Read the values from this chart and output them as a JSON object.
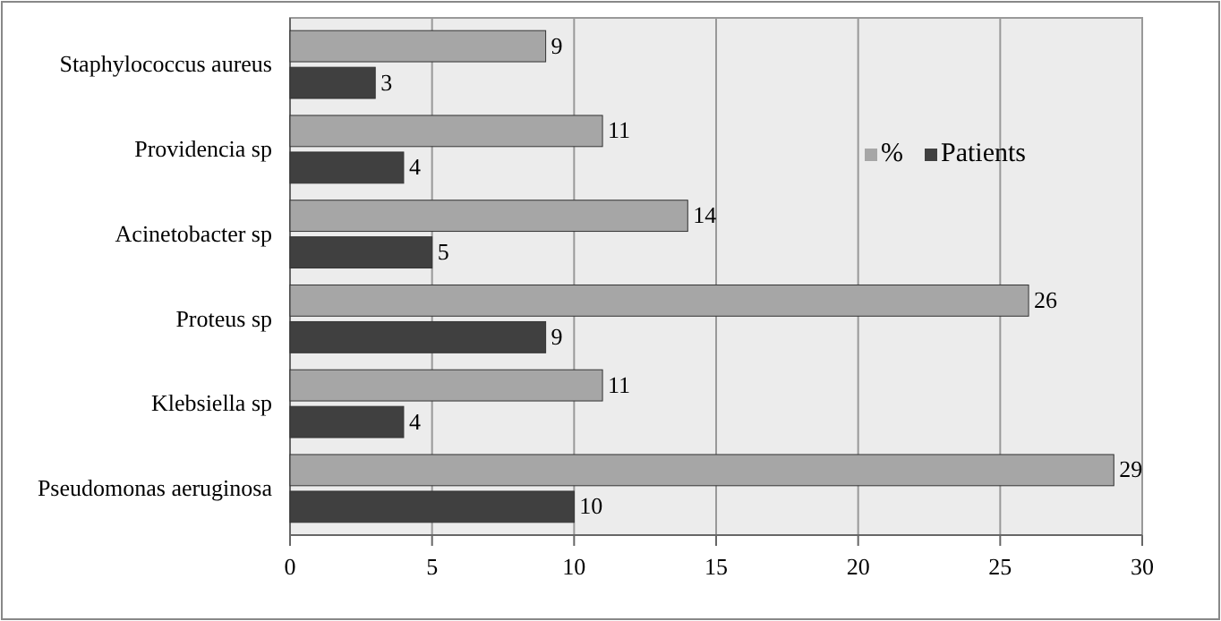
{
  "chart_data": {
    "type": "bar",
    "orientation": "horizontal",
    "categories": [
      "Staphylococcus aureus",
      "Providencia sp",
      "Acinetobacter sp",
      "Proteus sp",
      "Klebsiella sp",
      "Pseudomonas aeruginosa"
    ],
    "series": [
      {
        "name": "%",
        "color": "#a6a6a6",
        "values": [
          9,
          11,
          14,
          26,
          11,
          29
        ]
      },
      {
        "name": "Patients",
        "color": "#404040",
        "values": [
          3,
          4,
          5,
          9,
          4,
          10
        ]
      }
    ],
    "xlim": [
      0,
      30
    ],
    "xticks": [
      0,
      5,
      10,
      15,
      20,
      25,
      30
    ],
    "grid": "x",
    "legend": "top right",
    "data_labels": true
  }
}
